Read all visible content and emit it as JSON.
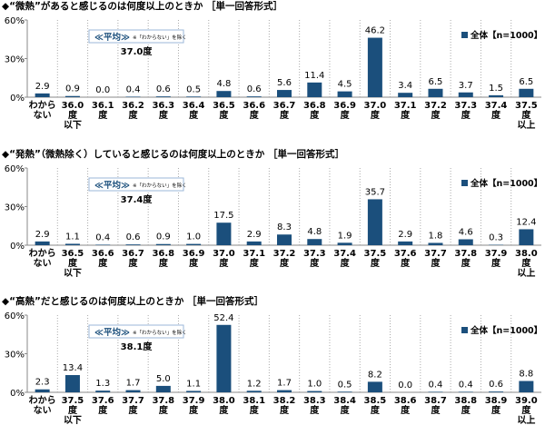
{
  "chart_data": [
    {
      "type": "bar",
      "title": "◆“微熱”があると感じるのは何度以上のときか ［単一回答形式］",
      "categories": [
        "わからない",
        "36.0度以下",
        "36.1度",
        "36.2度",
        "36.3度",
        "36.4度",
        "36.5度",
        "36.6度",
        "36.7度",
        "36.8度",
        "36.9度",
        "37.0度",
        "37.1度",
        "37.2度",
        "37.3度",
        "37.4度",
        "37.5度以上"
      ],
      "series": [
        {
          "name": "全体【n=1000】",
          "color": "#1b4f7c",
          "values": [
            2.9,
            0.9,
            0.0,
            0.4,
            0.6,
            0.5,
            4.8,
            0.6,
            5.6,
            11.4,
            4.5,
            46.2,
            3.4,
            6.5,
            3.7,
            1.5,
            6.5
          ],
          "value_labels": [
            "2.9",
            "0.9",
            "0.0",
            "0.4",
            "0.6",
            "0.5",
            "4.8",
            "0.6",
            "5.6",
            "11.4",
            "4.5",
            "46.2",
            "3.4",
            "6.5",
            "3.7",
            "1.5",
            "6.5"
          ]
        }
      ],
      "ylim": [
        0,
        60
      ],
      "yticks": [
        {
          "value": 0,
          "label": "0%"
        },
        {
          "value": 30,
          "label": "30%"
        },
        {
          "value": 60,
          "label": "60%"
        }
      ],
      "annotation": {
        "heading": "≪平均≫",
        "note": "※「わからない」を除く",
        "text": "37.0度"
      }
    },
    {
      "type": "bar",
      "title": "◆“発熱”（微熱除く）していると感じるのは何度以上のときか ［単一回答形式］",
      "categories": [
        "わからない",
        "36.5度以下",
        "36.6度",
        "36.7度",
        "36.8度",
        "36.9度",
        "37.0度",
        "37.1度",
        "37.2度",
        "37.3度",
        "37.4度",
        "37.5度",
        "37.6度",
        "37.7度",
        "37.8度",
        "37.9度",
        "38.0度以上"
      ],
      "series": [
        {
          "name": "全体【n=1000】",
          "color": "#1b4f7c",
          "values": [
            2.9,
            1.1,
            0.4,
            0.6,
            0.9,
            1.0,
            17.5,
            2.9,
            8.3,
            4.8,
            1.9,
            35.7,
            2.9,
            1.8,
            4.6,
            0.3,
            12.4
          ],
          "value_labels": [
            "2.9",
            "1.1",
            "0.4",
            "0.6",
            "0.9",
            "1.0",
            "17.5",
            "2.9",
            "8.3",
            "4.8",
            "1.9",
            "35.7",
            "2.9",
            "1.8",
            "4.6",
            "0.3",
            "12.4"
          ]
        }
      ],
      "ylim": [
        0,
        60
      ],
      "yticks": [
        {
          "value": 0,
          "label": "0%"
        },
        {
          "value": 30,
          "label": "30%"
        },
        {
          "value": 60,
          "label": "60%"
        }
      ],
      "annotation": {
        "heading": "≪平均≫",
        "note": "※「わからない」を除く",
        "text": "37.4度"
      }
    },
    {
      "type": "bar",
      "title": "◆“高熱”だと感じるのは何度以上のときか ［単一回答形式］",
      "categories": [
        "わからない",
        "37.5度以下",
        "37.6度",
        "37.7度",
        "37.8度",
        "37.9度",
        "38.0度",
        "38.1度",
        "38.2度",
        "38.3度",
        "38.4度",
        "38.5度",
        "38.6度",
        "38.7度",
        "38.8度",
        "38.9度",
        "39.0度以上"
      ],
      "series": [
        {
          "name": "全体【n=1000】",
          "color": "#1b4f7c",
          "values": [
            2.3,
            13.4,
            1.3,
            1.7,
            5.0,
            1.1,
            52.4,
            1.2,
            1.7,
            1.0,
            0.5,
            8.2,
            0.0,
            0.4,
            0.4,
            0.6,
            8.8
          ],
          "value_labels": [
            "2.3",
            "13.4",
            "1.3",
            "1.7",
            "5.0",
            "1.1",
            "52.4",
            "1.2",
            "1.7",
            "1.0",
            "0.5",
            "8.2",
            "0.0",
            "0.4",
            "0.4",
            "0.6",
            "8.8"
          ]
        }
      ],
      "ylim": [
        0,
        60
      ],
      "yticks": [
        {
          "value": 0,
          "label": "0%"
        },
        {
          "value": 30,
          "label": "30%"
        },
        {
          "value": 60,
          "label": "60%"
        }
      ],
      "annotation": {
        "heading": "≪平均≫",
        "note": "※「わからない」を除く",
        "text": "38.1度"
      }
    }
  ]
}
